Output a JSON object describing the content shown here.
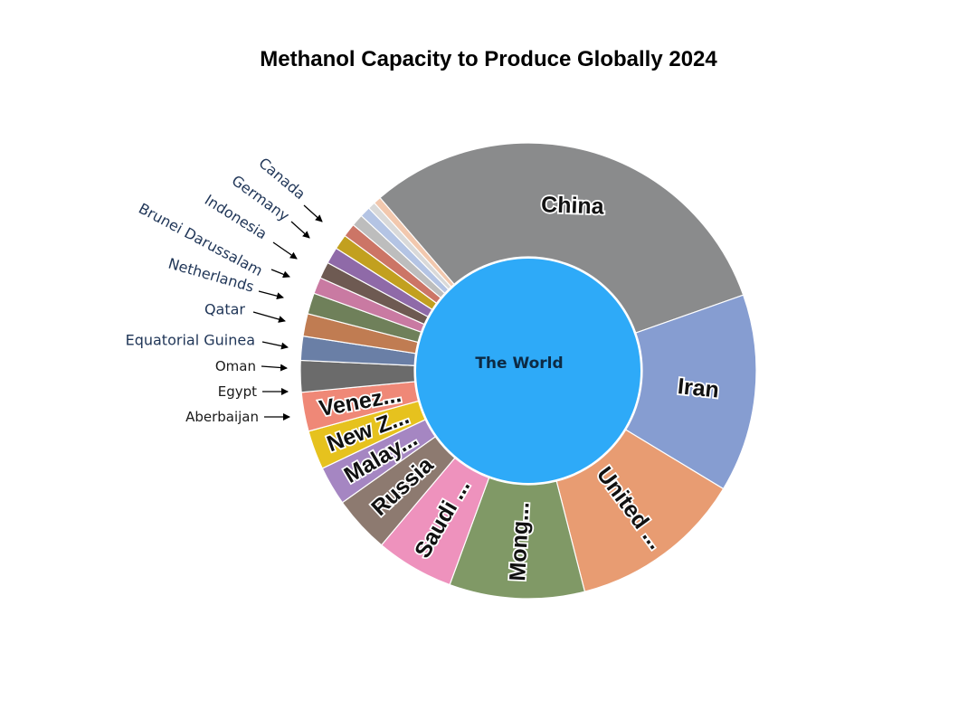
{
  "title": "Methanol Capacity to Produce Globally 2024",
  "chart_data": {
    "type": "sunburst",
    "title": "Methanol Capacity to Produce Globally 2024",
    "root": "The World",
    "root_color": "#2eaaf8",
    "slices": [
      {
        "name": "China",
        "display": "China",
        "value": 29.0,
        "color": "#8a8b8c"
      },
      {
        "name": "Iran",
        "display": "Iran",
        "value": 13.2,
        "color": "#869dd1"
      },
      {
        "name": "United ...",
        "display": "United ...",
        "value": 11.6,
        "color": "#e89c72"
      },
      {
        "name": "Mong...",
        "display": "Mong...",
        "value": 9.0,
        "color": "#809966"
      },
      {
        "name": "Saudi ...",
        "display": "Saudi ...",
        "value": 5.2,
        "color": "#ee92bd"
      },
      {
        "name": "Russia",
        "display": "Russia",
        "value": 3.8,
        "color": "#8d7a70"
      },
      {
        "name": "Malay...",
        "display": "Malay...",
        "value": 2.6,
        "color": "#a586c2"
      },
      {
        "name": "New Z...",
        "display": "New Z...",
        "value": 2.6,
        "color": "#e6c21e"
      },
      {
        "name": "Venez...",
        "display": "Venez...",
        "value": 2.6,
        "color": "#ef8877"
      },
      {
        "name": "Aberbaijan",
        "display": "",
        "value": 2.1,
        "color": "#6b6b6b"
      },
      {
        "name": "Egypt",
        "display": "",
        "value": 1.6,
        "color": "#6a7fa6"
      },
      {
        "name": "Oman",
        "display": "",
        "value": 1.5,
        "color": "#c07c52"
      },
      {
        "name": "Equatorial Guinea",
        "display": "",
        "value": 1.4,
        "color": "#6f805a"
      },
      {
        "name": "Qatar",
        "display": "",
        "value": 1.1,
        "color": "#c97aa2"
      },
      {
        "name": "Netherlands",
        "display": "",
        "value": 1.1,
        "color": "#6e5a52"
      },
      {
        "name": "Brunei Darussalam",
        "display": "",
        "value": 1.1,
        "color": "#8f6aa8"
      },
      {
        "name": "Indonesia",
        "display": "",
        "value": 1.0,
        "color": "#c2a01f"
      },
      {
        "name": "",
        "display": "",
        "value": 0.9,
        "color": "#cc7566"
      },
      {
        "name": "",
        "display": "",
        "value": 0.8,
        "color": "#bdbdbd"
      },
      {
        "name": "Germany",
        "display": "",
        "value": 0.7,
        "color": "#b4c4e4"
      },
      {
        "name": "",
        "display": "",
        "value": 0.5,
        "color": "#d9d9d9"
      },
      {
        "name": "Canada",
        "display": "",
        "value": 0.5,
        "color": "#f2c8ae"
      }
    ],
    "callout_labels": [
      "Aberbaijan",
      "Egypt",
      "Oman",
      "Equatorial Guinea",
      "Qatar",
      "Netherlands",
      "Brunei Darussalam",
      "Indonesia",
      "Germany",
      "Canada"
    ]
  }
}
